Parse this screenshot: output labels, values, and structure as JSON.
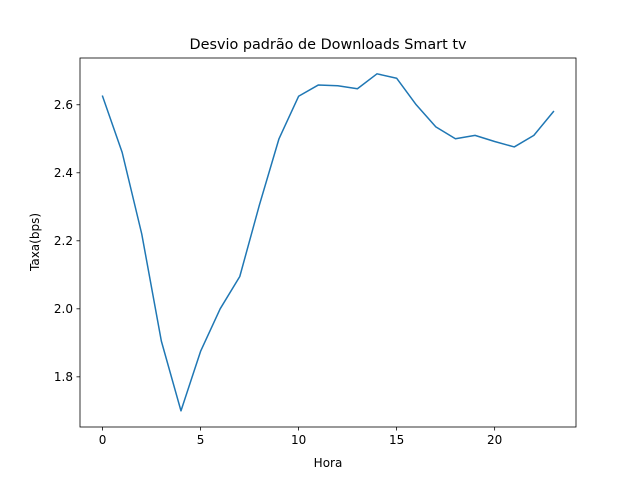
{
  "chart_data": {
    "type": "line",
    "title": "Desvio padrão de Downloads Smart tv",
    "xlabel": "Hora",
    "ylabel": "Taxa(bps)",
    "xlim": [
      -1.15,
      24.15
    ],
    "ylim": [
      1.6525,
      2.7375
    ],
    "xticks": [
      0,
      5,
      10,
      15,
      20
    ],
    "xtick_labels": [
      "0",
      "5",
      "10",
      "15",
      "20"
    ],
    "yticks": [
      1.8,
      2.0,
      2.2,
      2.4,
      2.6
    ],
    "ytick_labels": [
      "1.8",
      "2.0",
      "2.2",
      "2.4",
      "2.6"
    ],
    "grid": false,
    "series": [
      {
        "color": "#1f77b4",
        "x": [
          0,
          1,
          2,
          3,
          4,
          5,
          6,
          7,
          8,
          9,
          10,
          11,
          12,
          13,
          14,
          15,
          16,
          17,
          18,
          19,
          20,
          21,
          22,
          23
        ],
        "y": [
          2.625,
          2.46,
          2.22,
          1.905,
          1.7,
          1.875,
          2.0,
          2.095,
          2.305,
          2.5,
          2.625,
          2.658,
          2.656,
          2.647,
          2.691,
          2.678,
          2.6,
          2.535,
          2.5,
          2.51,
          2.492,
          2.476,
          2.51,
          2.58
        ]
      }
    ]
  }
}
